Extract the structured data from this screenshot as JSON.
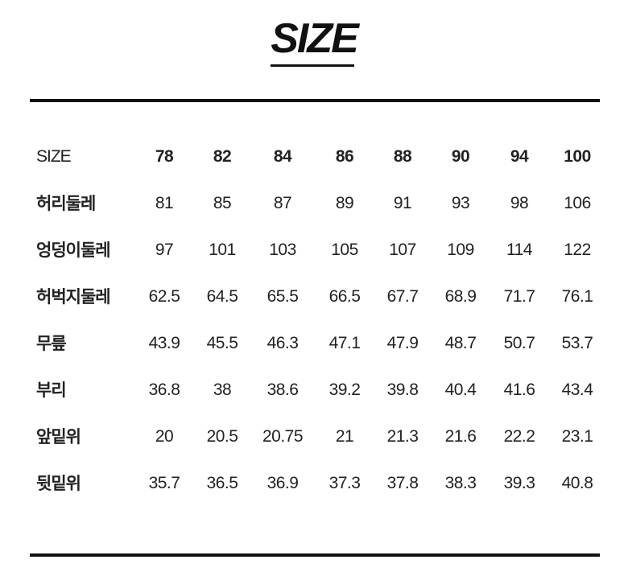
{
  "title": "SIZE",
  "table": {
    "header": {
      "label": "SIZE",
      "values": [
        "78",
        "82",
        "84",
        "86",
        "88",
        "90",
        "94",
        "100"
      ]
    },
    "rows": [
      {
        "label": "허리둘레",
        "values": [
          "81",
          "85",
          "87",
          "89",
          "91",
          "93",
          "98",
          "106"
        ]
      },
      {
        "label": "엉덩이둘레",
        "values": [
          "97",
          "101",
          "103",
          "105",
          "107",
          "109",
          "114",
          "122"
        ]
      },
      {
        "label": "허벅지둘레",
        "values": [
          "62.5",
          "64.5",
          "65.5",
          "66.5",
          "67.7",
          "68.9",
          "71.7",
          "76.1"
        ]
      },
      {
        "label": "무릎",
        "values": [
          "43.9",
          "45.5",
          "46.3",
          "47.1",
          "47.9",
          "48.7",
          "50.7",
          "53.7"
        ]
      },
      {
        "label": "부리",
        "values": [
          "36.8",
          "38",
          "38.6",
          "39.2",
          "39.8",
          "40.4",
          "41.6",
          "43.4"
        ]
      },
      {
        "label": "앞밑위",
        "values": [
          "20",
          "20.5",
          "20.75",
          "21",
          "21.3",
          "21.6",
          "22.2",
          "23.1"
        ]
      },
      {
        "label": "뒷밑위",
        "values": [
          "35.7",
          "36.5",
          "36.9",
          "37.3",
          "37.8",
          "38.3",
          "39.3",
          "40.8"
        ]
      }
    ]
  }
}
